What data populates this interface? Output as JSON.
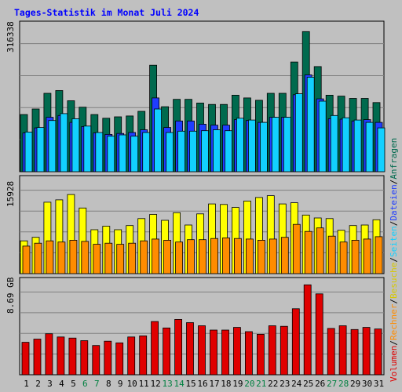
{
  "title": "Tages-Statistik im Monat Juli 2024",
  "colors": {
    "page_bg": "#c0c0c0",
    "plot_bg": "#c0c0c0",
    "grid": "#808080",
    "weekday_label": "#000000",
    "weekend_label": "#008040",
    "anfragen": "#006a4e",
    "dateien": "#1f3dff",
    "seiten": "#12d0ff",
    "besuche": "#ffff00",
    "rechner": "#ff8c00",
    "volumen": "#e00000"
  },
  "legend": [
    {
      "key": "volumen",
      "label": "Volumen",
      "color": "#e00000"
    },
    {
      "key": "sep1",
      "label": "/",
      "color": "#000000"
    },
    {
      "key": "rechner",
      "label": "Rechner",
      "color": "#ff8c00"
    },
    {
      "key": "sep2",
      "label": "/",
      "color": "#000000"
    },
    {
      "key": "besuche",
      "label": "Besuche",
      "color": "#d7c800"
    },
    {
      "key": "sep3",
      "label": "/",
      "color": "#000000"
    },
    {
      "key": "seiten",
      "label": "Seiten",
      "color": "#12d0ff"
    },
    {
      "key": "sep4",
      "label": "/",
      "color": "#000000"
    },
    {
      "key": "dateien",
      "label": "Dateien",
      "color": "#1f3dff"
    },
    {
      "key": "sep5",
      "label": "/",
      "color": "#000000"
    },
    {
      "key": "anfragen",
      "label": "Anfragen",
      "color": "#006a4e"
    }
  ],
  "chart_data": [
    {
      "type": "bar",
      "panel": "anfragen-dateien-seiten",
      "ymax_label": "316338",
      "ylim": [
        0,
        316338
      ],
      "categories": [
        "1",
        "2",
        "3",
        "4",
        "5",
        "6",
        "7",
        "8",
        "9",
        "10",
        "11",
        "12",
        "13",
        "14",
        "15",
        "16",
        "17",
        "18",
        "19",
        "20",
        "21",
        "22",
        "23",
        "24",
        "25",
        "26",
        "27",
        "28",
        "29",
        "30",
        "31"
      ],
      "weekend_days": [
        6,
        7,
        13,
        14,
        20,
        21,
        27,
        28
      ],
      "series": [
        {
          "name": "Anfragen",
          "values": [
            124000,
            136000,
            170000,
            176000,
            154000,
            140000,
            124000,
            116000,
            119000,
            121000,
            131000,
            231000,
            141000,
            157000,
            157000,
            149000,
            146000,
            146000,
            166000,
            160000,
            155000,
            170000,
            170000,
            238000,
            304000,
            228000,
            166000,
            164000,
            159000,
            159000,
            150000
          ]
        },
        {
          "name": "Dateien",
          "values": [
            84000,
            95000,
            118000,
            122000,
            107000,
            98000,
            84000,
            81000,
            83000,
            85000,
            91000,
            160000,
            96000,
            110000,
            110000,
            103000,
            101000,
            101000,
            113000,
            111000,
            107000,
            118000,
            118000,
            167000,
            210000,
            158000,
            115000,
            114000,
            110000,
            113000,
            107000
          ]
        },
        {
          "name": "Seiten",
          "values": [
            86000,
            96000,
            111000,
            126000,
            115000,
            99000,
            85000,
            77000,
            80000,
            77000,
            85000,
            136000,
            85000,
            88000,
            88000,
            89000,
            91000,
            89000,
            116000,
            112000,
            107000,
            118000,
            118000,
            169000,
            205000,
            153000,
            122000,
            117000,
            112000,
            107000,
            95000
          ]
        }
      ]
    },
    {
      "type": "bar",
      "panel": "besuche-rechner",
      "ymax_label": "15928",
      "ylim": [
        0,
        15928
      ],
      "categories": [
        "1",
        "2",
        "3",
        "4",
        "5",
        "6",
        "7",
        "8",
        "9",
        "10",
        "11",
        "12",
        "13",
        "14",
        "15",
        "16",
        "17",
        "18",
        "19",
        "20",
        "21",
        "22",
        "23",
        "24",
        "25",
        "26",
        "27",
        "28",
        "29",
        "30",
        "31"
      ],
      "series": [
        {
          "name": "Besuche",
          "values": [
            5600,
            6200,
            12200,
            12600,
            13500,
            11200,
            7500,
            8100,
            7500,
            8200,
            9400,
            10100,
            9100,
            10400,
            8300,
            10200,
            11900,
            11800,
            11300,
            12400,
            13000,
            13300,
            11900,
            12100,
            10000,
            9500,
            9400,
            7400,
            8200,
            8300,
            9200
          ]
        },
        {
          "name": "Rechner",
          "values": [
            4700,
            5200,
            5600,
            5400,
            5700,
            5500,
            5000,
            5200,
            5000,
            5200,
            5600,
            5900,
            5700,
            5400,
            5800,
            5800,
            6000,
            6100,
            6000,
            5900,
            5700,
            5900,
            6200,
            8400,
            7200,
            7800,
            6400,
            5400,
            5700,
            5900,
            6300
          ]
        }
      ]
    },
    {
      "type": "bar",
      "panel": "volumen",
      "ymax_label": "8.69 GB",
      "ylim": [
        0,
        8.69
      ],
      "categories": [
        "1",
        "2",
        "3",
        "4",
        "5",
        "6",
        "7",
        "8",
        "9",
        "10",
        "11",
        "12",
        "13",
        "14",
        "15",
        "16",
        "17",
        "18",
        "19",
        "20",
        "21",
        "22",
        "23",
        "24",
        "25",
        "26",
        "27",
        "28",
        "29",
        "30",
        "31"
      ],
      "series": [
        {
          "name": "Volumen",
          "values": [
            3.05,
            3.35,
            3.85,
            3.55,
            3.45,
            3.2,
            2.75,
            3.15,
            3.0,
            3.55,
            3.65,
            5.0,
            4.4,
            5.2,
            4.9,
            4.6,
            4.2,
            4.2,
            4.45,
            4.05,
            3.8,
            4.6,
            4.55,
            6.2,
            8.45,
            7.6,
            4.35,
            4.6,
            4.25,
            4.45,
            4.3
          ]
        }
      ]
    }
  ]
}
